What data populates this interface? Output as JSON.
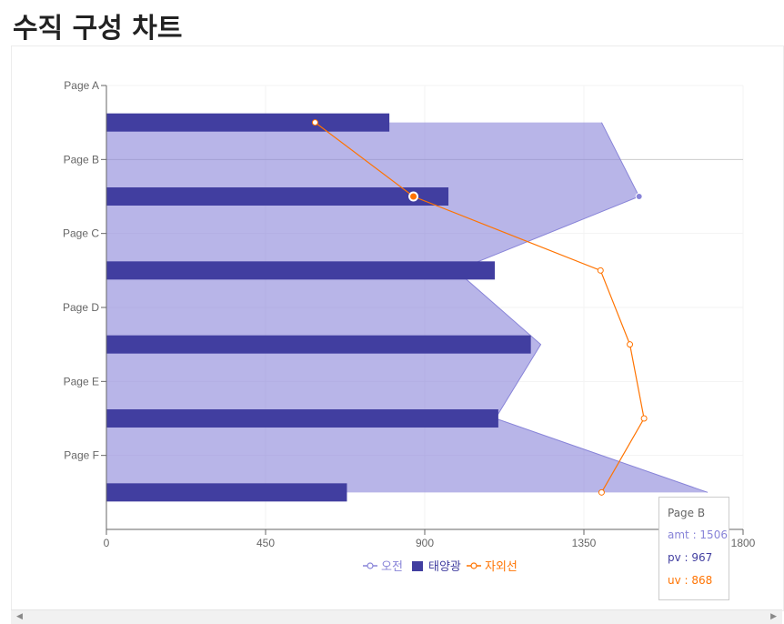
{
  "page": {
    "title": "수직 구성 차트"
  },
  "chart_data": {
    "type": "composed-vertical",
    "categories": [
      "Page A",
      "Page B",
      "Page C",
      "Page D",
      "Page E",
      "Page F"
    ],
    "series": [
      {
        "name": "오전",
        "kind": "area",
        "key": "amt",
        "color": "#8884d8",
        "values": [
          1400,
          1506,
          989,
          1228,
          1100,
          1700
        ]
      },
      {
        "name": "태양광",
        "kind": "bar",
        "key": "pv",
        "color": "#413ea0",
        "values": [
          800,
          967,
          1098,
          1200,
          1108,
          680
        ]
      },
      {
        "name": "자외선",
        "kind": "line",
        "key": "uv",
        "color": "#ff7300",
        "values": [
          590,
          868,
          1397,
          1480,
          1520,
          1400
        ]
      }
    ],
    "xlim": [
      0,
      1800
    ],
    "xticks": [
      "0",
      "450",
      "900",
      "1350",
      "1800"
    ],
    "grid": true,
    "legend_position": "bottom",
    "active_category": "Page B"
  },
  "tooltip": {
    "title": "Page B",
    "rows": [
      {
        "label": "amt : 1506",
        "color": "#8884d8"
      },
      {
        "label": "pv : 967",
        "color": "#413ea0"
      },
      {
        "label": "uv : 868",
        "color": "#ff7300"
      }
    ]
  },
  "scrollbar": {
    "left_icon": "left-arrow-icon",
    "right_icon": "right-arrow-icon"
  }
}
